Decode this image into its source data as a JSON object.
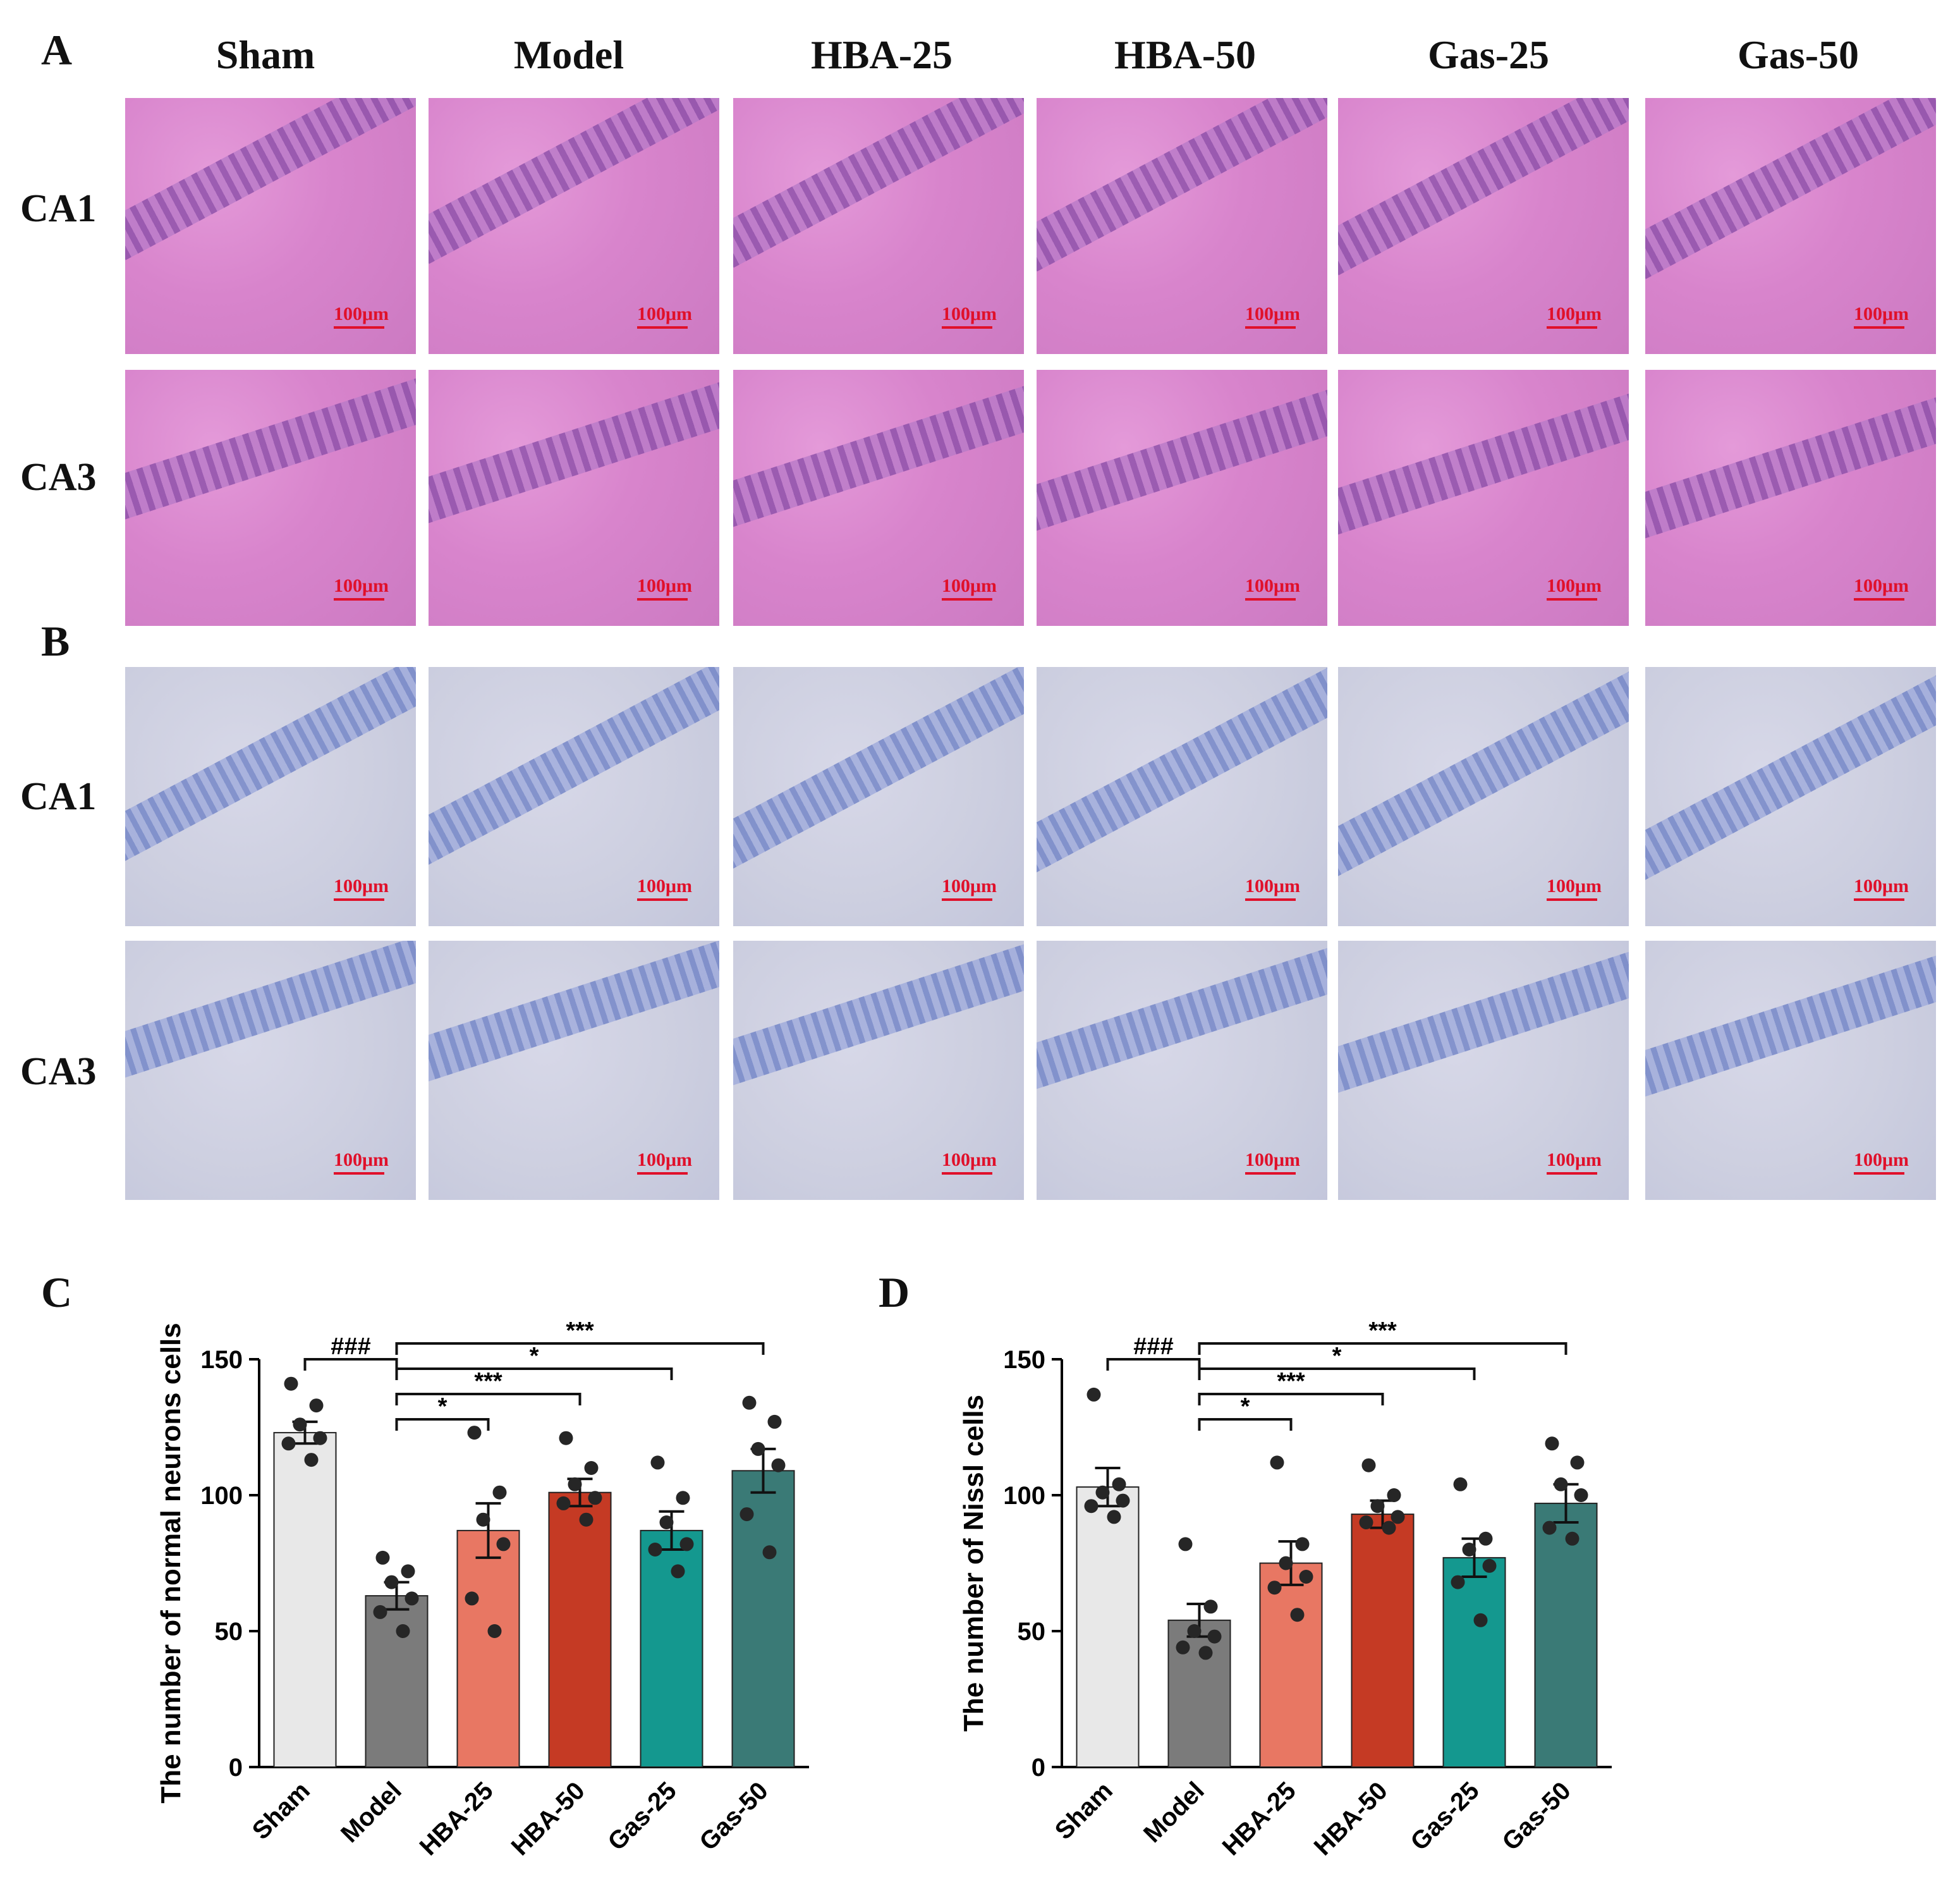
{
  "panels": {
    "a": "A",
    "b": "B",
    "c": "C",
    "d": "D"
  },
  "groups": [
    "Sham",
    "Model",
    "HBA-25",
    "HBA-50",
    "Gas-25",
    "Gas-50"
  ],
  "regions": [
    "CA1",
    "CA3"
  ],
  "scale_bar": "100μm",
  "colors": {
    "Sham": "#e8e8e8",
    "Model": "#7b7b7b",
    "HBA-25": "#e87763",
    "HBA-50": "#c53a24",
    "Gas-25": "#14988f",
    "Gas-50": "#3a7a76",
    "he_stain": "#d884cc",
    "nissl_stain": "#cdcfe0",
    "scale_red": "#e0102a"
  },
  "chart_data": [
    {
      "type": "bar",
      "panel": "C",
      "title": "",
      "ylabel": "The number of normal neurons cells",
      "categories": [
        "Sham",
        "Model",
        "HBA-25",
        "HBA-50",
        "Gas-25",
        "Gas-50"
      ],
      "values": [
        123,
        63,
        87,
        101,
        87,
        109
      ],
      "sem": [
        4,
        5,
        10,
        5,
        7,
        8
      ],
      "points": [
        [
          141,
          133,
          126,
          121,
          119,
          113
        ],
        [
          77,
          72,
          68,
          62,
          57,
          50
        ],
        [
          123,
          101,
          91,
          82,
          62,
          50
        ],
        [
          121,
          110,
          104,
          99,
          97,
          91
        ],
        [
          112,
          99,
          90,
          82,
          80,
          72
        ],
        [
          134,
          127,
          117,
          111,
          93,
          79
        ]
      ],
      "ylim": [
        0,
        150
      ],
      "yticks": [
        0,
        50,
        100,
        150
      ],
      "significance": [
        {
          "label": "###",
          "from": "Sham",
          "to": "Model"
        },
        {
          "label": "*",
          "from": "Model",
          "to": "HBA-25"
        },
        {
          "label": "***",
          "from": "Model",
          "to": "HBA-50"
        },
        {
          "label": "*",
          "from": "Model",
          "to": "Gas-25"
        },
        {
          "label": "***",
          "from": "Model",
          "to": "Gas-50"
        }
      ]
    },
    {
      "type": "bar",
      "panel": "D",
      "title": "",
      "ylabel": "The number of Nissl cells",
      "categories": [
        "Sham",
        "Model",
        "HBA-25",
        "HBA-50",
        "Gas-25",
        "Gas-50"
      ],
      "values": [
        103,
        54,
        75,
        93,
        77,
        97
      ],
      "sem": [
        7,
        6,
        8,
        5,
        7,
        7
      ],
      "points": [
        [
          137,
          104,
          101,
          98,
          96,
          92
        ],
        [
          82,
          59,
          50,
          48,
          44,
          42
        ],
        [
          112,
          82,
          75,
          70,
          66,
          56
        ],
        [
          111,
          100,
          96,
          92,
          90,
          88
        ],
        [
          104,
          84,
          80,
          74,
          68,
          54
        ],
        [
          119,
          112,
          104,
          100,
          88,
          84
        ]
      ],
      "ylim": [
        0,
        150
      ],
      "yticks": [
        0,
        50,
        100,
        150
      ],
      "significance": [
        {
          "label": "###",
          "from": "Sham",
          "to": "Model"
        },
        {
          "label": "*",
          "from": "Model",
          "to": "HBA-25"
        },
        {
          "label": "***",
          "from": "Model",
          "to": "HBA-50"
        },
        {
          "label": "*",
          "from": "Model",
          "to": "Gas-25"
        },
        {
          "label": "***",
          "from": "Model",
          "to": "Gas-50"
        }
      ]
    }
  ]
}
